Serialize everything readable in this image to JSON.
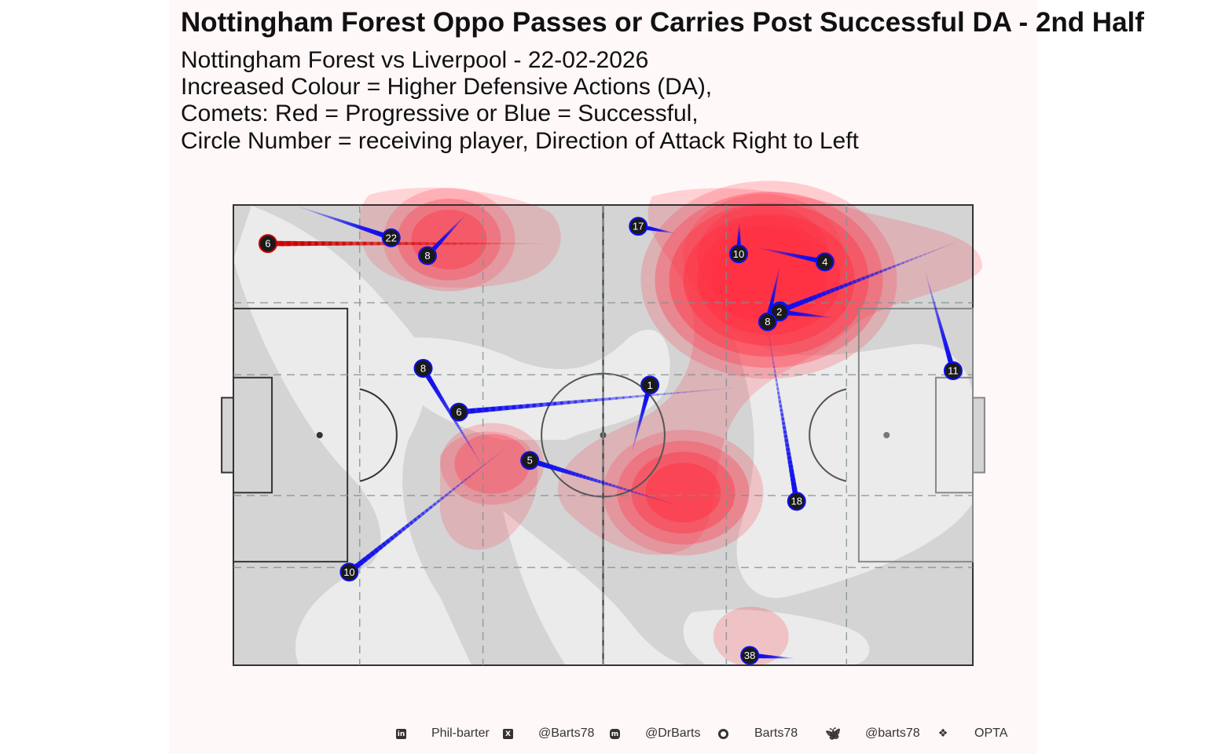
{
  "header": {
    "title": "Nottingham Forest Oppo Passes or Carries Post Successful DA - 2nd Half",
    "subtitle_lines": [
      "Nottingham Forest vs Liverpool - 22-02-2026",
      "Increased Colour = Higher Defensive Actions (DA),",
      "Comets: Red = Progressive or Blue = Successful,",
      "Circle Number = receiving player, Direction of Attack Right to Left"
    ]
  },
  "chart_data": {
    "type": "scatter",
    "description_of_encoding": "",
    "pitch": {
      "length": 120,
      "width": 80
    },
    "direction_of_attack": "Right to Left",
    "colors": {
      "progressive": "#cc0000",
      "successful": "#1010ee",
      "heat": "#ff3344",
      "pitch": "#d4d4d4",
      "pitch_light": "#ebebeb",
      "panel": "#fff8f8"
    },
    "comets": [
      {
        "player": "6",
        "type": "progressive",
        "start": [
          50.5,
          6.7
        ],
        "end": [
          5.6,
          6.7
        ]
      },
      {
        "player": "22",
        "type": "successful",
        "start": [
          10.6,
          0.3
        ],
        "end": [
          25.6,
          5.7
        ]
      },
      {
        "player": "8",
        "type": "successful",
        "start": [
          37.6,
          1.8
        ],
        "end": [
          31.5,
          8.8
        ]
      },
      {
        "player": "17",
        "type": "successful",
        "start": [
          71.6,
          4.9
        ],
        "end": [
          65.7,
          3.7
        ]
      },
      {
        "player": "10",
        "type": "successful",
        "start": [
          82.1,
          3.1
        ],
        "end": [
          82.0,
          8.5
        ]
      },
      {
        "player": "4",
        "type": "successful",
        "start": [
          85.0,
          7.4
        ],
        "end": [
          96.0,
          9.9
        ]
      },
      {
        "player": "5",
        "type": "successful",
        "start": [
          117.2,
          6.5
        ],
        "end": [
          88.7,
          18.4
        ]
      },
      {
        "player": "2",
        "type": "successful",
        "start": [
          97.3,
          19.6
        ],
        "end": [
          88.6,
          18.6
        ]
      },
      {
        "player": "8",
        "type": "successful",
        "start": [
          88.7,
          10.5
        ],
        "end": [
          86.7,
          20.3
        ]
      },
      {
        "player": "11",
        "type": "successful",
        "start": [
          112.3,
          11.7
        ],
        "end": [
          116.8,
          28.8
        ]
      },
      {
        "player": "8",
        "type": "successful",
        "start": [
          40.2,
          45.0
        ],
        "end": [
          30.8,
          28.4
        ]
      },
      {
        "player": "6",
        "type": "successful",
        "start": [
          81.1,
          31.8
        ],
        "end": [
          36.6,
          36.0
        ]
      },
      {
        "player": "1",
        "type": "successful",
        "start": [
          64.7,
          42.8
        ],
        "end": [
          67.6,
          31.3
        ]
      },
      {
        "player": "5",
        "type": "successful",
        "start": [
          71.8,
          52.1
        ],
        "end": [
          48.1,
          44.4
        ]
      },
      {
        "player": "10",
        "type": "successful",
        "start": [
          44.0,
          42.4
        ],
        "end": [
          18.8,
          63.8
        ]
      },
      {
        "player": "18",
        "type": "successful",
        "start": [
          86.7,
          21.4
        ],
        "end": [
          91.4,
          51.5
        ]
      },
      {
        "player": "38",
        "type": "successful",
        "start": [
          90.9,
          78.8
        ],
        "end": [
          83.8,
          78.3
        ]
      }
    ],
    "density_peaks": [
      {
        "x": 86.9,
        "y": 13.0,
        "level": 6
      },
      {
        "x": 86.0,
        "y": 9.0,
        "level": 4
      },
      {
        "x": 73.0,
        "y": 50.0,
        "level": 4
      },
      {
        "x": 35.0,
        "y": 6.0,
        "level": 3
      },
      {
        "x": 42.0,
        "y": 45.0,
        "level": 2
      },
      {
        "x": 84.0,
        "y": 75.0,
        "level": 1
      }
    ]
  },
  "footer": {
    "items": [
      {
        "icon": "linkedin-icon",
        "label": "Phil-barter"
      },
      {
        "icon": "x-icon",
        "label": "@Barts78"
      },
      {
        "icon": "mastodon-icon",
        "label": "@DrBarts"
      },
      {
        "icon": "github-icon",
        "label": "Barts78"
      },
      {
        "icon": "bluesky-icon",
        "label": "@barts78"
      },
      {
        "icon": "dropbox-icon",
        "label": "OPTA"
      }
    ]
  }
}
